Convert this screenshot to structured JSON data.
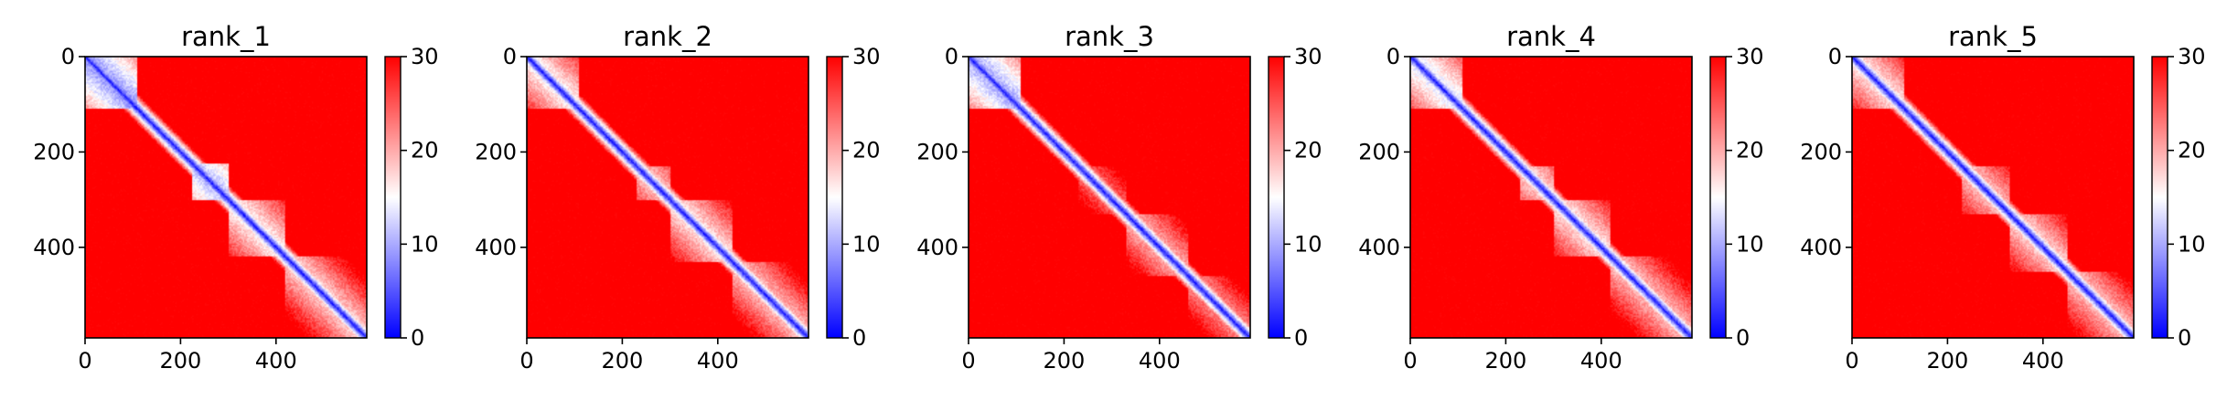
{
  "chart_data": {
    "type": "heatmap",
    "colormap": {
      "name": "bwr",
      "low": "#0000ff",
      "mid": "#ffffff",
      "high": "#ff0000"
    },
    "clim": [
      0,
      30
    ],
    "n_residues": 590,
    "x_ticks": [
      "0",
      "200",
      "400"
    ],
    "y_ticks": [
      "0",
      "200",
      "400"
    ],
    "colorbar_ticks": [
      "0",
      "10",
      "20",
      "30"
    ],
    "colorbar_tick_values": [
      0,
      10,
      20,
      30
    ],
    "tick_values": [
      0,
      200,
      400
    ],
    "panels": [
      {
        "title": "rank_1",
        "blocks": [
          [
            0,
            110,
            8
          ],
          [
            225,
            300,
            10
          ],
          [
            300,
            420,
            14
          ],
          [
            420,
            590,
            16
          ]
        ]
      },
      {
        "title": "rank_2",
        "blocks": [
          [
            0,
            110,
            14
          ],
          [
            230,
            300,
            17
          ],
          [
            300,
            430,
            15
          ],
          [
            430,
            590,
            17
          ]
        ]
      },
      {
        "title": "rank_3",
        "blocks": [
          [
            0,
            110,
            9
          ],
          [
            230,
            330,
            22
          ],
          [
            330,
            460,
            18
          ],
          [
            460,
            590,
            20
          ]
        ]
      },
      {
        "title": "rank_4",
        "blocks": [
          [
            0,
            110,
            12
          ],
          [
            230,
            300,
            16
          ],
          [
            300,
            420,
            15
          ],
          [
            420,
            590,
            17
          ]
        ]
      },
      {
        "title": "rank_5",
        "blocks": [
          [
            0,
            110,
            15
          ],
          [
            230,
            330,
            17
          ],
          [
            330,
            450,
            16
          ],
          [
            450,
            590,
            17
          ]
        ]
      }
    ]
  }
}
